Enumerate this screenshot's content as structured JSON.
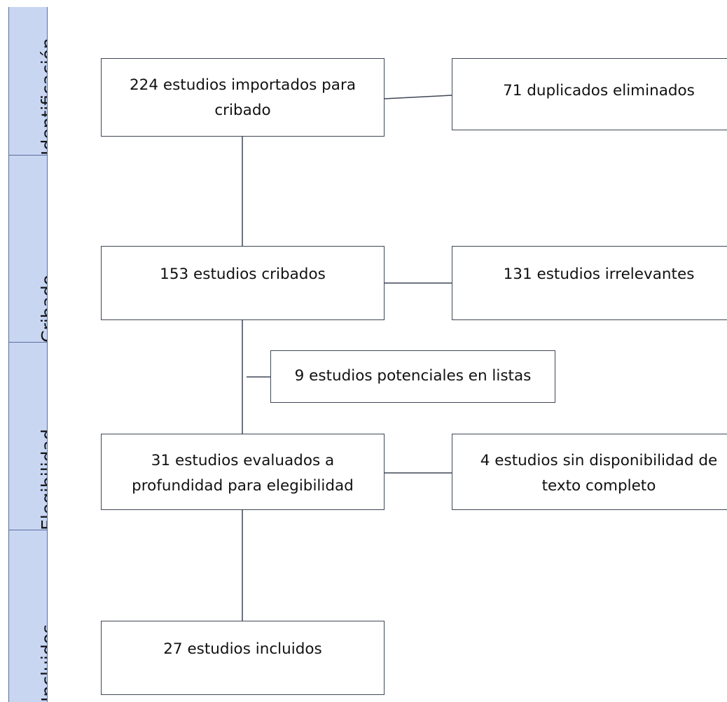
{
  "phases": [
    {
      "label": "Identificación"
    },
    {
      "label": "Cribado"
    },
    {
      "label": "Elegibilidad"
    },
    {
      "label": "Incluidos"
    }
  ],
  "boxes": {
    "imported": "224 estudios importados para cribado",
    "duplicates": "71 duplicados eliminados",
    "screened": "153 estudios cribados",
    "irrelevant": "131 estudios irrelevantes",
    "lists": "9 estudios potenciales en listas",
    "assessed": "31 estudios evaluados a profundidad para elegibilidad",
    "no_fulltext": "4 estudios sin disponibilidad de texto completo",
    "included": "27 estudios incluidos"
  }
}
